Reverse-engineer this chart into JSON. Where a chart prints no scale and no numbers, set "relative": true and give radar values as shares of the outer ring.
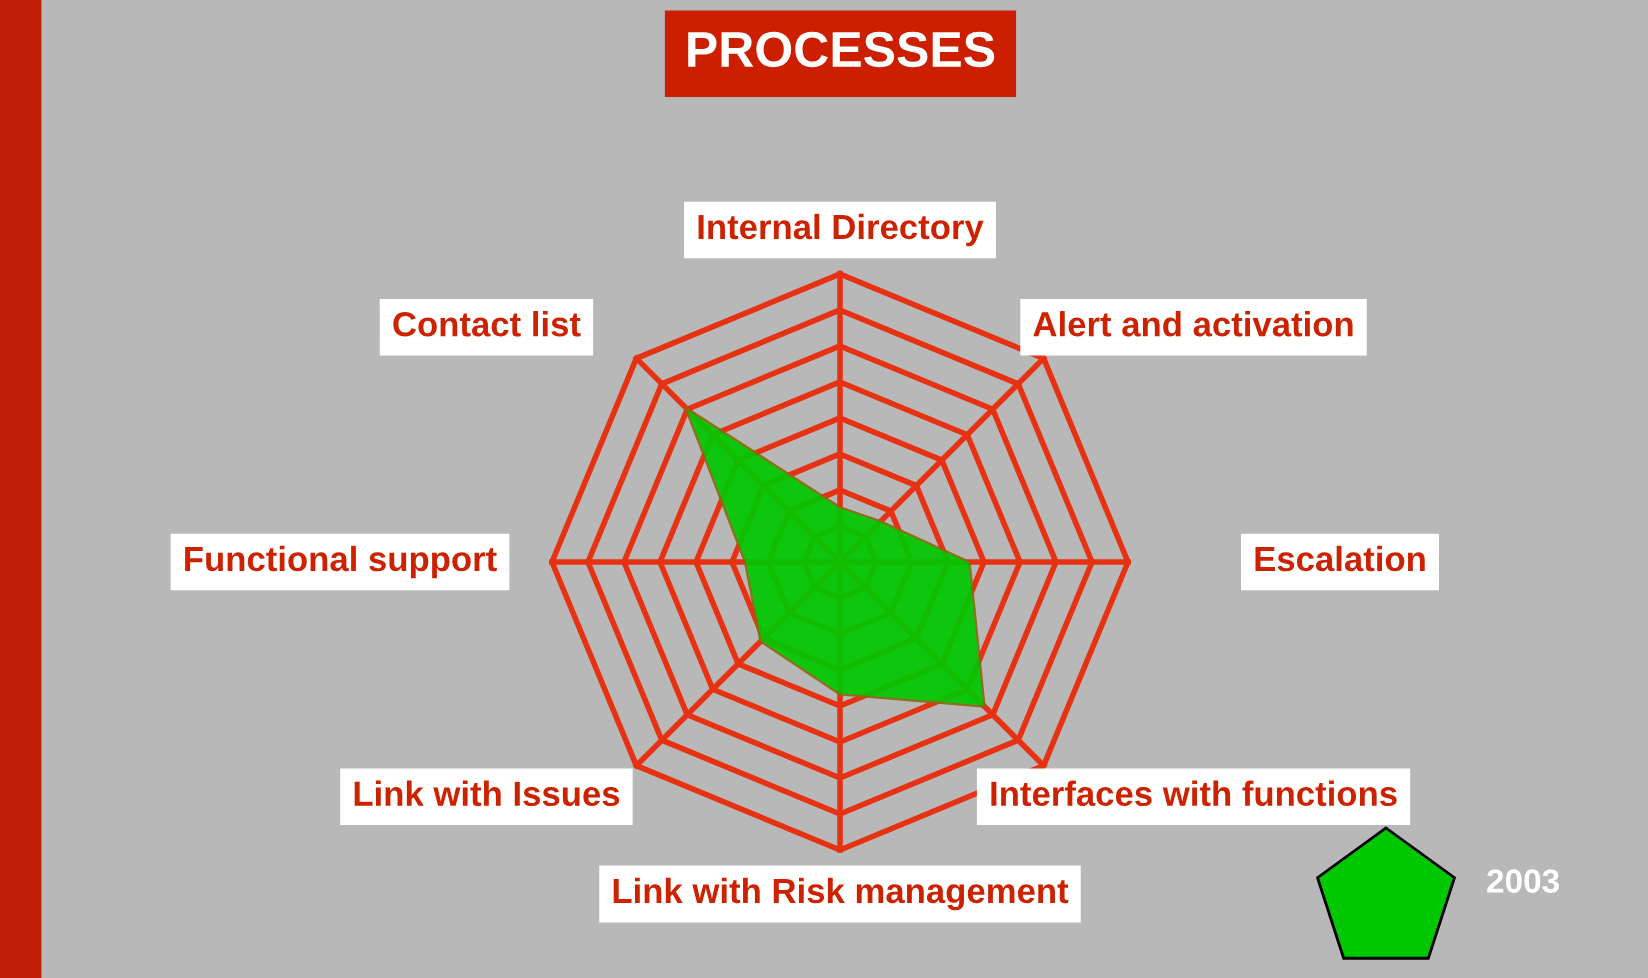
{
  "chart_data": {
    "type": "radar",
    "title": "PROCESSES",
    "categories": [
      "Internal Directory",
      "Alert and activation",
      "Escalation",
      "Interfaces with functions",
      "Link with Risk management",
      "Link with Issues",
      "Functional support",
      "Contact list"
    ],
    "relative": true,
    "series": [
      {
        "name": "2003",
        "color": "#00c800",
        "values": [
          0.19,
          0.2,
          0.45,
          0.71,
          0.46,
          0.39,
          0.33,
          0.76
        ]
      }
    ],
    "grid": true,
    "legend": "bottom right"
  }
}
